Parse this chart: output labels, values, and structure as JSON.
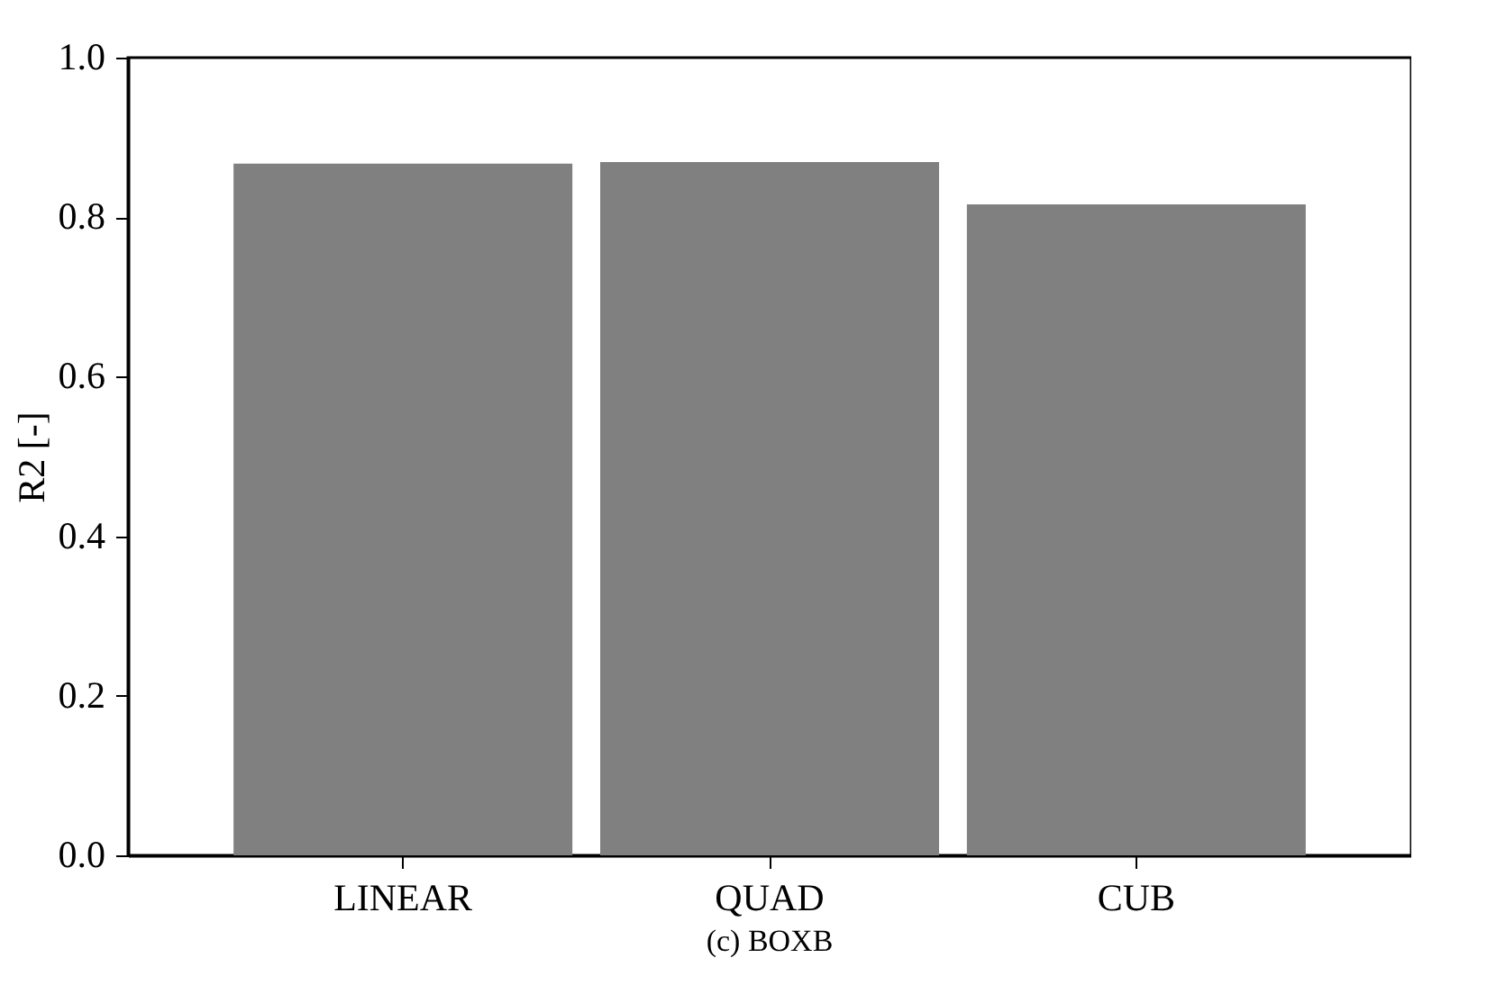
{
  "chart_data": {
    "type": "bar",
    "title": "(c) BOXB",
    "ylabel": "R2 [-]",
    "categories": [
      "LINEAR",
      "QUAD",
      "CUB"
    ],
    "values": [
      0.867,
      0.869,
      0.816
    ],
    "color": "#808080",
    "ylim": [
      0.0,
      1.0
    ],
    "yticks": [
      {
        "value": 0.0,
        "label": "0.0"
      },
      {
        "value": 0.2,
        "label": "0.2"
      },
      {
        "value": 0.4,
        "label": "0.4"
      },
      {
        "value": 0.6,
        "label": "0.6"
      },
      {
        "value": 0.8,
        "label": "0.8"
      },
      {
        "value": 1.0,
        "label": "1.0"
      }
    ],
    "grid": false
  }
}
